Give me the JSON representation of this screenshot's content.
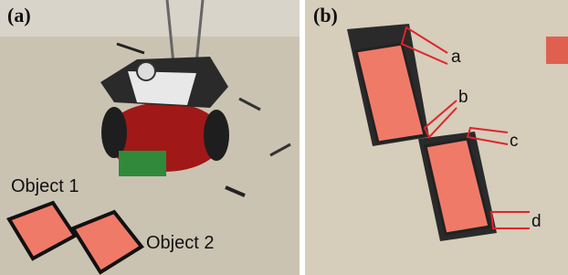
{
  "panels": [
    {
      "label": "(a)",
      "annotations": [
        "Object 1",
        "Object 2"
      ]
    },
    {
      "label": "(b)",
      "annotations": [
        "a",
        "b",
        "c",
        "d"
      ]
    }
  ]
}
